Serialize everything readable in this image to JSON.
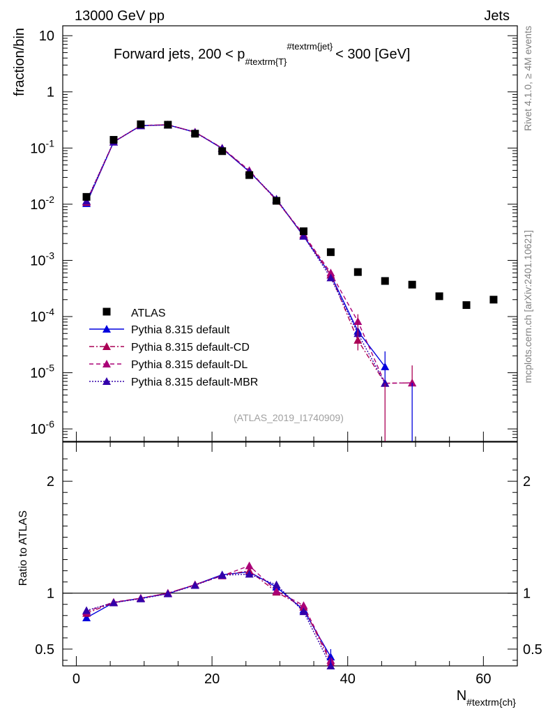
{
  "header": {
    "left": "13000 GeV pp",
    "right": "Jets"
  },
  "side_labels": {
    "rivet": "Rivet 4.1.0, ≥ 4M events",
    "mcplots": "mcplots.cern.ch [arXiv:2401.10621]"
  },
  "chart_data": {
    "type": "scatter",
    "title": "Forward jets, 200 < p",
    "title_sub": "#textrm{T}",
    "title_sup": "#textrm{jet}",
    "title_end": "< 300 [GeV]",
    "analysis_label": "(ATLAS_2019_I1740909)",
    "xlabel": "N",
    "xlabel_sub": "#textrm{ch}",
    "ylabel": "fraction/bin",
    "ratio_ylabel": "Ratio to ATLAS",
    "xlim": [
      -2,
      65
    ],
    "ylim": [
      6e-07,
      15
    ],
    "yscale": "log",
    "ratio_ylim": [
      0.35,
      2.35
    ],
    "x_ticks": [
      "0",
      "20",
      "40",
      "60"
    ],
    "y_ticks": [
      "10",
      "1",
      "10^-1",
      "10^-2",
      "10^-3",
      "10^-4",
      "10^-5",
      "10^-6"
    ],
    "ratio_ticks": [
      "0.5",
      "1",
      "2"
    ],
    "legend_position": "lower-left",
    "data": {
      "name": "ATLAS",
      "color": "#000000",
      "x": [
        1.5,
        5.5,
        9.5,
        13.5,
        17.5,
        21.5,
        25.5,
        29.5,
        33.5,
        37.5,
        41.5,
        45.5,
        49.5,
        53.5,
        57.5,
        61.5
      ],
      "y": [
        0.0135,
        0.14,
        0.265,
        0.26,
        0.18,
        0.088,
        0.033,
        0.0115,
        0.0033,
        0.0014,
        0.00062,
        0.00043,
        0.00037,
        0.00023,
        0.00016,
        0.0002
      ]
    },
    "series": [
      {
        "name": "Pythia 8.315 default",
        "color": "#0000dd",
        "style": "solid",
        "x": [
          1.5,
          5.5,
          9.5,
          13.5,
          17.5,
          21.5,
          25.5,
          29.5,
          33.5,
          37.5,
          41.5,
          45.5,
          49.5
        ],
        "y": [
          0.0103,
          0.128,
          0.251,
          0.258,
          0.192,
          0.098,
          0.038,
          0.0122,
          0.0027,
          0.00055,
          5.5e-05,
          1.28e-05,
          null
        ],
        "ratio": [
          0.78,
          0.915,
          0.955,
          0.995,
          1.075,
          1.165,
          1.19,
          1.055,
          0.85,
          0.43,
          null,
          null,
          null
        ]
      },
      {
        "name": "Pythia 8.315 default-CD",
        "color": "#aa0055",
        "style": "dashdot",
        "x": [
          1.5,
          5.5,
          9.5,
          13.5,
          17.5,
          21.5,
          25.5,
          29.5,
          33.5,
          37.5,
          41.5,
          45.5,
          49.5
        ],
        "y": [
          0.0108,
          0.128,
          0.251,
          0.26,
          0.192,
          0.099,
          0.039,
          0.0117,
          0.0028,
          0.00055,
          3.8e-05,
          6.5e-06,
          6.6e-06
        ],
        "ratio": [
          0.82,
          0.915,
          0.955,
          1.0,
          1.075,
          1.16,
          1.2,
          1.01,
          0.875,
          0.38,
          null,
          null,
          null
        ]
      },
      {
        "name": "Pythia 8.315 default-DL",
        "color": "#aa0077",
        "style": "dashed",
        "x": [
          1.5,
          5.5,
          9.5,
          13.5,
          17.5,
          21.5,
          25.5,
          29.5,
          33.5,
          37.5,
          41.5,
          45.5,
          49.5
        ],
        "y": [
          0.0112,
          0.129,
          0.252,
          0.26,
          0.193,
          0.1,
          0.04,
          0.0118,
          0.0029,
          0.0006,
          8.2e-05,
          6.5e-06,
          6.6e-06
        ],
        "ratio": [
          0.835,
          0.92,
          0.955,
          1.0,
          1.075,
          1.155,
          1.245,
          1.02,
          0.89,
          0.4,
          null,
          null,
          null
        ]
      },
      {
        "name": "Pythia 8.315 default-MBR",
        "color": "#3300aa",
        "style": "dotted",
        "x": [
          1.5,
          5.5,
          9.5,
          13.5,
          17.5,
          21.5,
          25.5,
          29.5,
          33.5,
          37.5,
          41.5,
          45.5,
          49.5
        ],
        "y": [
          0.0114,
          0.128,
          0.25,
          0.258,
          0.19,
          0.099,
          0.038,
          0.0124,
          0.0027,
          0.00049,
          5e-05,
          6.5e-06,
          null
        ],
        "ratio": [
          0.845,
          0.915,
          0.95,
          0.995,
          1.07,
          1.16,
          1.17,
          1.075,
          0.835,
          0.35,
          null,
          null,
          null
        ]
      }
    ]
  }
}
